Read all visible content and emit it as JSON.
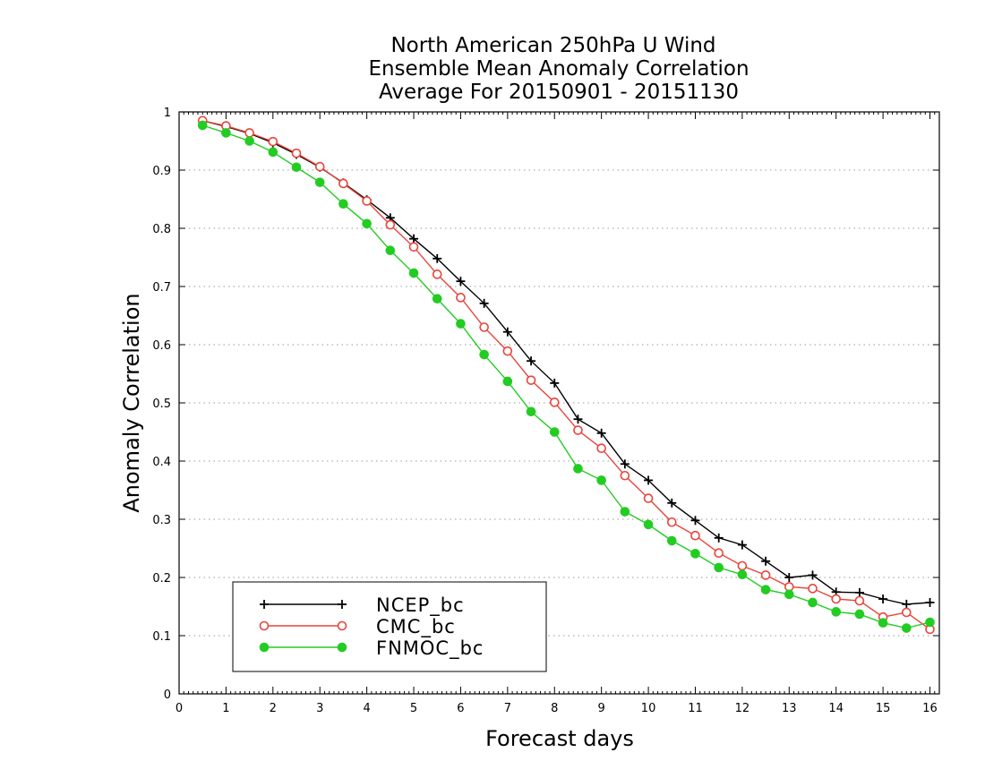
{
  "chart_data": {
    "type": "line",
    "title_lines": [
      "North American 250hPa U Wind",
      "Ensemble Mean Anomaly Correlation",
      "Average For 20150901 - 20151130"
    ],
    "xlabel": "Forecast days",
    "ylabel": "Anomaly Correlation",
    "xlim": [
      0,
      16.2
    ],
    "ylim": [
      0,
      1
    ],
    "xticks": [
      0,
      1,
      2,
      3,
      4,
      5,
      6,
      7,
      8,
      9,
      10,
      11,
      12,
      13,
      14,
      15,
      16
    ],
    "yticks": [
      0,
      0.1,
      0.2,
      0.3,
      0.4,
      0.5,
      0.6,
      0.7,
      0.8,
      0.9,
      1
    ],
    "ytick_labels": [
      "0",
      "0.1",
      "0.2",
      "0.3",
      "0.4",
      "0.5",
      "0.6",
      "0.7",
      "0.8",
      "0.9",
      "1"
    ],
    "grid": "horizontal-dotted",
    "legend_position": "bottom-left",
    "x": [
      0.5,
      1.0,
      1.5,
      2.0,
      2.5,
      3.0,
      3.5,
      4.0,
      4.5,
      5.0,
      5.5,
      6.0,
      6.5,
      7.0,
      7.5,
      8.0,
      8.5,
      9.0,
      9.5,
      10.0,
      10.5,
      11.0,
      11.5,
      12.0,
      12.5,
      13.0,
      13.5,
      14.0,
      14.5,
      15.0,
      15.5,
      16.0
    ],
    "series": [
      {
        "name": "NCEP_bc",
        "color": "#000000",
        "marker": "plus",
        "values": [
          0.985,
          0.975,
          0.963,
          0.947,
          0.927,
          0.905,
          0.878,
          0.849,
          0.818,
          0.782,
          0.748,
          0.709,
          0.671,
          0.622,
          0.572,
          0.534,
          0.472,
          0.448,
          0.395,
          0.367,
          0.328,
          0.298,
          0.268,
          0.256,
          0.228,
          0.2,
          0.204,
          0.175,
          0.174,
          0.163,
          0.154,
          0.157
        ]
      },
      {
        "name": "CMC_bc",
        "color": "#e8453c",
        "marker": "open-circle",
        "values": [
          0.985,
          0.976,
          0.964,
          0.949,
          0.929,
          0.906,
          0.877,
          0.847,
          0.806,
          0.768,
          0.721,
          0.681,
          0.63,
          0.589,
          0.539,
          0.501,
          0.453,
          0.422,
          0.375,
          0.336,
          0.295,
          0.272,
          0.242,
          0.22,
          0.204,
          0.184,
          0.181,
          0.163,
          0.16,
          0.132,
          0.14,
          0.111
        ]
      },
      {
        "name": "FNMOC_bc",
        "color": "#22cc22",
        "marker": "filled-circle",
        "values": [
          0.977,
          0.964,
          0.95,
          0.931,
          0.905,
          0.879,
          0.842,
          0.808,
          0.762,
          0.723,
          0.679,
          0.636,
          0.583,
          0.537,
          0.485,
          0.45,
          0.387,
          0.367,
          0.313,
          0.291,
          0.263,
          0.241,
          0.217,
          0.205,
          0.179,
          0.171,
          0.157,
          0.141,
          0.137,
          0.122,
          0.113,
          0.123
        ]
      }
    ]
  }
}
